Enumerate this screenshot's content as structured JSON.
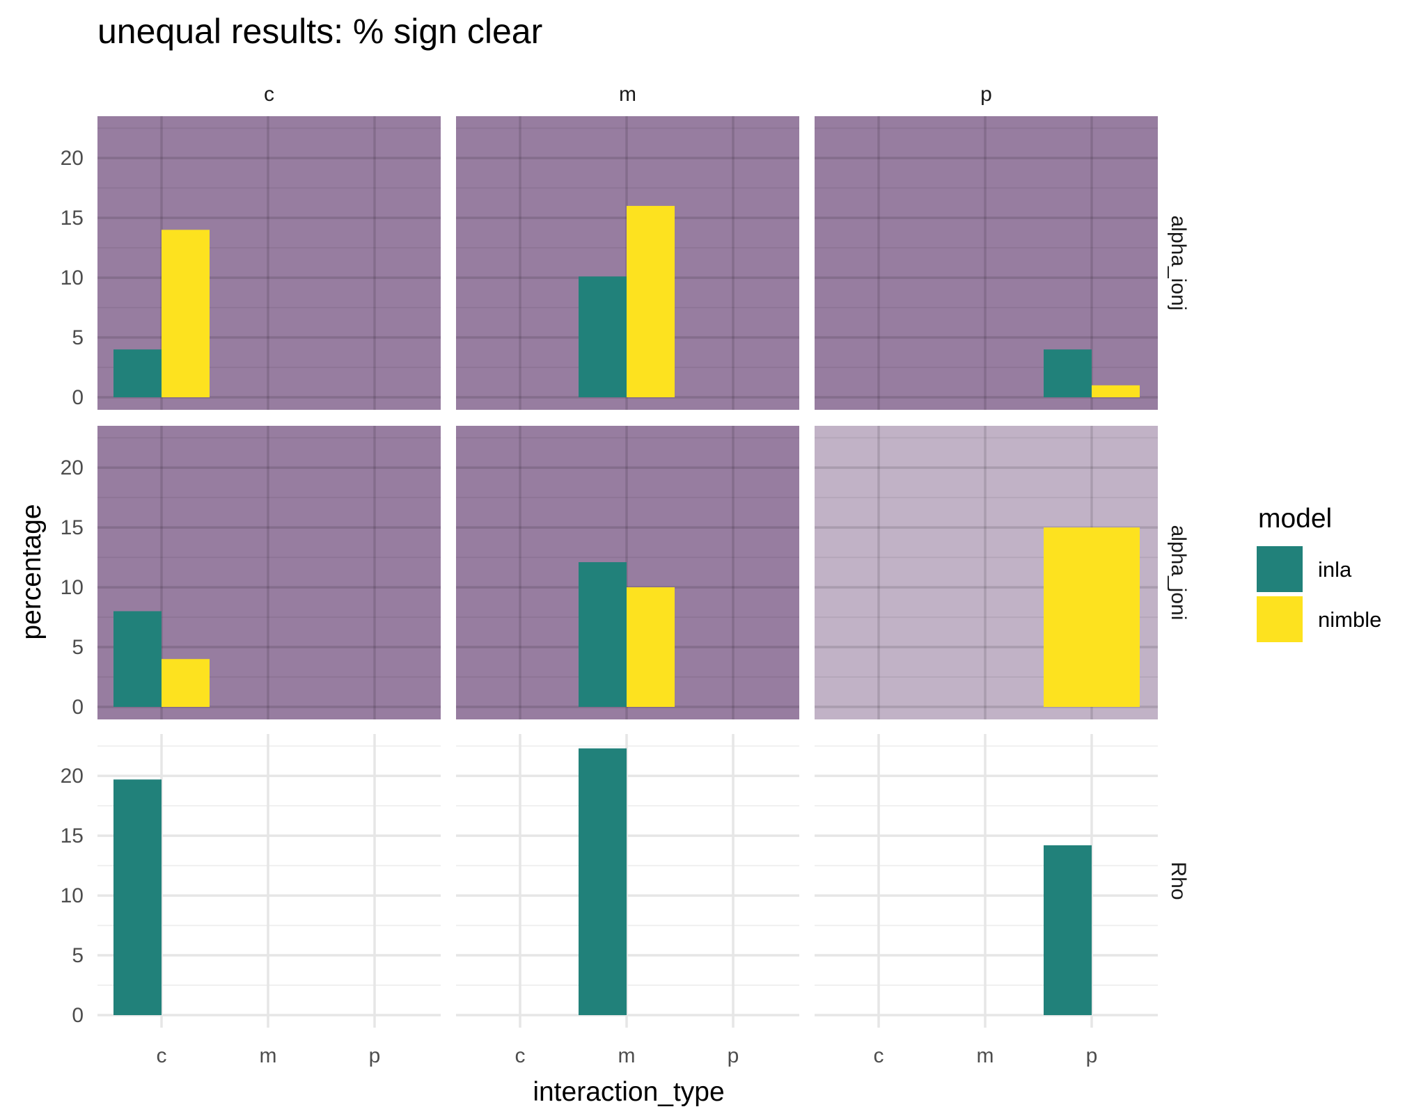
{
  "chart_data": {
    "type": "bar",
    "title": "unequal results: % sign clear",
    "xlabel": "interaction_type",
    "ylabel": "percentage",
    "facet_cols": [
      "c",
      "m",
      "p"
    ],
    "facet_rows": [
      "alpha_ionj",
      "alpha_joni",
      "Rho"
    ],
    "categories": [
      "c",
      "m",
      "p"
    ],
    "ylim": [
      0,
      23.5
    ],
    "yticks": [
      0,
      5,
      10,
      15,
      20
    ],
    "legend": {
      "title": "model",
      "placement": "right",
      "entries": [
        {
          "name": "inla",
          "color": "#21817a"
        },
        {
          "name": "nimble",
          "color": "#fde21f"
        }
      ]
    },
    "panels": [
      {
        "row": "alpha_ionj",
        "col": "c",
        "fill": "#977da0",
        "series": {
          "inla": [
            4,
            0,
            0
          ],
          "nimble": [
            14,
            0,
            0
          ]
        }
      },
      {
        "row": "alpha_ionj",
        "col": "m",
        "fill": "#977da0",
        "series": {
          "inla": [
            0,
            10.1,
            0
          ],
          "nimble": [
            0,
            16,
            0
          ]
        }
      },
      {
        "row": "alpha_ionj",
        "col": "p",
        "fill": "#977da0",
        "series": {
          "inla": [
            0,
            0,
            4
          ],
          "nimble": [
            0,
            0,
            1
          ]
        }
      },
      {
        "row": "alpha_joni",
        "col": "c",
        "fill": "#977da0",
        "series": {
          "inla": [
            8,
            0,
            0
          ],
          "nimble": [
            4,
            0,
            0
          ]
        }
      },
      {
        "row": "alpha_joni",
        "col": "m",
        "fill": "#977da0",
        "series": {
          "inla": [
            0,
            12.1,
            0
          ],
          "nimble": [
            0,
            10,
            0
          ]
        }
      },
      {
        "row": "alpha_joni",
        "col": "p",
        "fill": "#c1b2c6",
        "series": {
          "inla": [
            0,
            0,
            0
          ],
          "nimble": [
            0,
            0,
            15
          ]
        }
      },
      {
        "row": "Rho",
        "col": "c",
        "fill": "#ffffff",
        "series": {
          "inla": [
            19.7,
            0,
            0
          ],
          "nimble": [
            0,
            0,
            0
          ]
        }
      },
      {
        "row": "Rho",
        "col": "m",
        "fill": "#ffffff",
        "series": {
          "inla": [
            0,
            22.3,
            0
          ],
          "nimble": [
            0,
            0,
            0
          ]
        }
      },
      {
        "row": "Rho",
        "col": "p",
        "fill": "#ffffff",
        "series": {
          "inla": [
            0,
            0,
            14.2
          ],
          "nimble": [
            0,
            0,
            0
          ]
        }
      }
    ]
  }
}
